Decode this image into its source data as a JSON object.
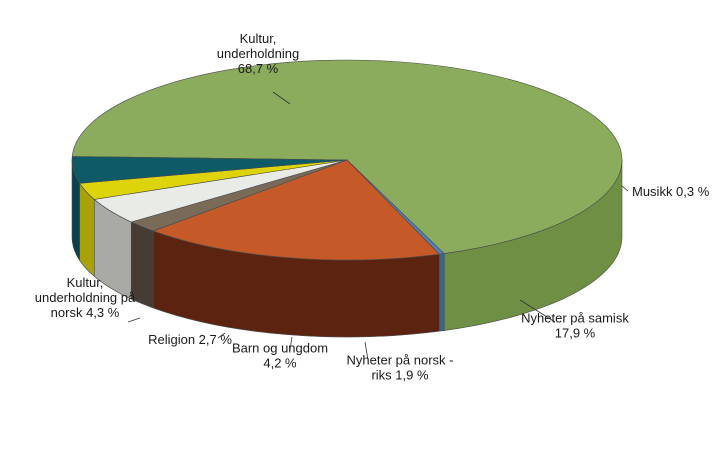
{
  "chart_data": {
    "type": "pie",
    "style": "3d",
    "slices": [
      {
        "name": "Kultur, underholdning",
        "value": 68.7,
        "label": [
          "Kultur,",
          "underholdning",
          "68,7 %"
        ],
        "color": "#8aac5c",
        "side": "#6f8f45"
      },
      {
        "name": "Musikk",
        "value": 0.3,
        "label": [
          "Musikk 0,3 %"
        ],
        "color": "#4f81bd",
        "side": "#3b6591"
      },
      {
        "name": "Nyheter på samisk",
        "value": 17.9,
        "label": [
          "Nyheter på samisk",
          "17,9 %"
        ],
        "color": "#c55a28",
        "side": "#5c2410"
      },
      {
        "name": "Nyheter på norsk - riks",
        "value": 1.9,
        "label": [
          "Nyheter på norsk -",
          "riks 1,9 %"
        ],
        "color": "#7a6a58",
        "side": "#463c33"
      },
      {
        "name": "Barn og ungdom",
        "value": 4.2,
        "label": [
          "Barn og ungdom",
          "4,2 %"
        ],
        "color": "#e8ebe6",
        "side": "#a9aaa6"
      },
      {
        "name": "Religion",
        "value": 2.7,
        "label": [
          "Religion 2,7 %"
        ],
        "color": "#ddd40b",
        "side": "#a9a10a"
      },
      {
        "name": "Kultur, underholdning på norsk",
        "value": 4.3,
        "label": [
          "Kultur,",
          "underholdning på",
          "norsk 4,3 %"
        ],
        "color": "#0e5a66",
        "side": "#08434d"
      }
    ]
  }
}
